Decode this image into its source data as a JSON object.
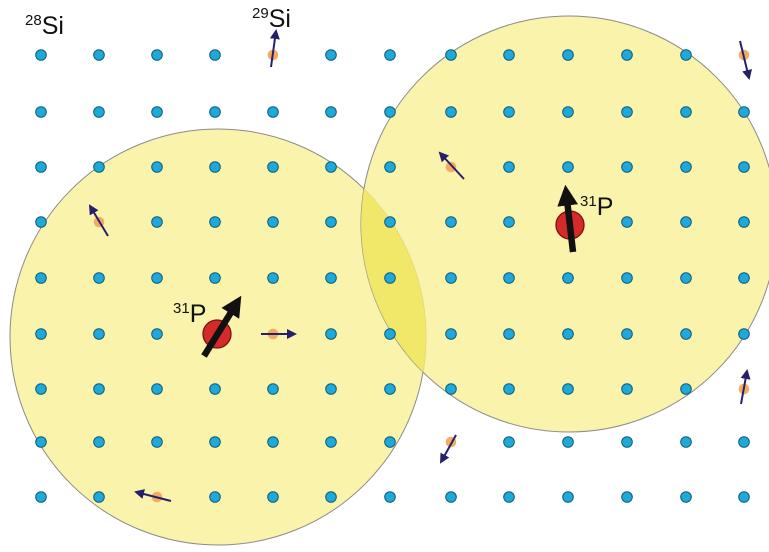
{
  "labels": {
    "si28": {
      "mass": "28",
      "element": "Si"
    },
    "si29": {
      "mass": "29",
      "element": "Si"
    },
    "p31_left": {
      "mass": "31",
      "element": "P"
    },
    "p31_right": {
      "mass": "31",
      "element": "P"
    }
  },
  "colors": {
    "si28_atom": "#1ea9d9",
    "si29_atom": "#f4ab63",
    "p31_atom": "#d42a2a",
    "wavefunction_fill": "#f6ef8a",
    "wavefunction_overlap": "#f0e661",
    "wavefunction_outline": "#8b8b8b",
    "nuclear_spin_arrow": "#26206b",
    "donor_spin_arrow": "#111111"
  },
  "lattice": {
    "rows": 9,
    "columns": 13
  },
  "si29_spins": [
    {
      "name": "si29-spin-top",
      "direction": "up"
    },
    {
      "name": "si29-spin-top-right",
      "direction": "down"
    },
    {
      "name": "si29-spin-upper-right",
      "direction": "up-left"
    },
    {
      "name": "si29-spin-left",
      "direction": "up-left"
    },
    {
      "name": "si29-spin-center",
      "direction": "right"
    },
    {
      "name": "si29-spin-lower-right",
      "direction": "up"
    },
    {
      "name": "si29-spin-bottom-middle",
      "direction": "down-left"
    },
    {
      "name": "si29-spin-bottom-left",
      "direction": "left"
    }
  ]
}
